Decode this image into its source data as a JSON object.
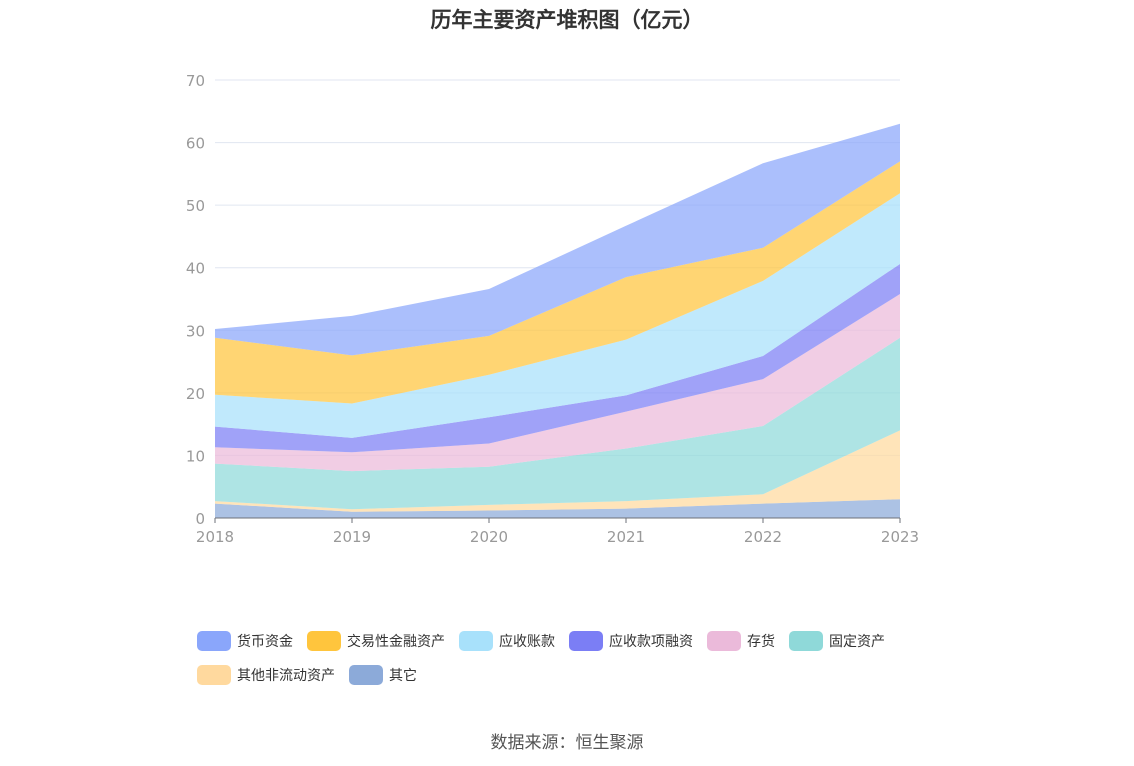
{
  "chart_data": {
    "type": "area",
    "stacked": true,
    "title": "历年主要资产堆积图（亿元）",
    "categories": [
      "2018",
      "2019",
      "2020",
      "2021",
      "2022",
      "2023"
    ],
    "ylim": [
      0,
      70
    ],
    "yticks": [
      "0",
      "10",
      "20",
      "30",
      "40",
      "50",
      "60",
      "70"
    ],
    "grid": true,
    "legend_position": "bottom",
    "series": [
      {
        "name": "其它",
        "color": "#8caad9",
        "values": [
          2.3,
          1.0,
          1.2,
          1.5,
          2.3,
          3.0
        ]
      },
      {
        "name": "其他非流动资产",
        "color": "#ffd99e",
        "values": [
          0.4,
          0.4,
          0.9,
          1.2,
          1.5,
          11.0
        ]
      },
      {
        "name": "固定资产",
        "color": "#8fd9d9",
        "values": [
          6.0,
          6.1,
          6.1,
          8.4,
          10.9,
          14.8
        ]
      },
      {
        "name": "存货",
        "color": "#ebbada",
        "values": [
          2.6,
          3.0,
          3.7,
          5.9,
          7.5,
          7.0
        ]
      },
      {
        "name": "应收款项融资",
        "color": "#7b7ef5",
        "values": [
          3.3,
          2.3,
          4.2,
          2.6,
          3.7,
          4.8
        ]
      },
      {
        "name": "应收账款",
        "color": "#a8e1fb",
        "values": [
          5.1,
          5.5,
          6.8,
          8.9,
          12.0,
          11.3
        ]
      },
      {
        "name": "交易性金融资产",
        "color": "#ffc53d",
        "values": [
          9.1,
          7.7,
          6.2,
          10.0,
          5.3,
          5.1
        ]
      },
      {
        "name": "货币资金",
        "color": "#8aa6fb",
        "values": [
          1.4,
          6.3,
          7.5,
          8.2,
          13.5,
          6.0
        ]
      }
    ]
  },
  "legend": [
    {
      "label": "货币资金",
      "color": "#8aa6fb"
    },
    {
      "label": "交易性金融资产",
      "color": "#ffc53d"
    },
    {
      "label": "应收账款",
      "color": "#a8e1fb"
    },
    {
      "label": "应收款项融资",
      "color": "#7b7ef5"
    },
    {
      "label": "存货",
      "color": "#ebbada"
    },
    {
      "label": "固定资产",
      "color": "#8fd9d9"
    },
    {
      "label": "其他非流动资产",
      "color": "#ffd99e"
    },
    {
      "label": "其它",
      "color": "#8caad9"
    }
  ],
  "source": "数据来源：恒生聚源"
}
